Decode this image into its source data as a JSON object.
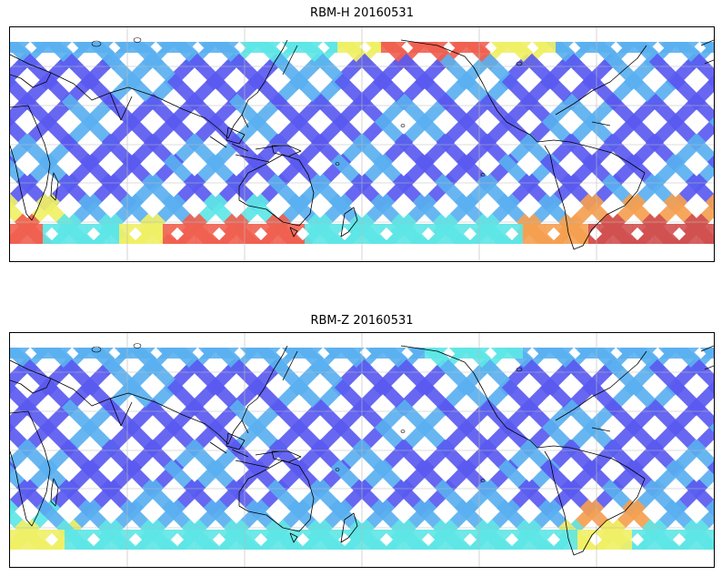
{
  "panels": [
    {
      "title": "RBM-H 20160531",
      "colors": {
        "low": "#5a5af0",
        "mid": "#5ab0f0",
        "cyan": "#5ee6e6",
        "yellow": "#f0f066",
        "orange": "#f5a050",
        "red": "#f06050",
        "dark": "#d05050"
      }
    },
    {
      "title": "RBM-Z 20160531",
      "colors": {
        "low": "#5a5af0",
        "mid": "#5ab0f0",
        "cyan": "#5ee6e6",
        "yellow": "#f0f066",
        "orange": "#f5a050",
        "red": "#f06050",
        "dark": "#d05050"
      }
    }
  ]
}
